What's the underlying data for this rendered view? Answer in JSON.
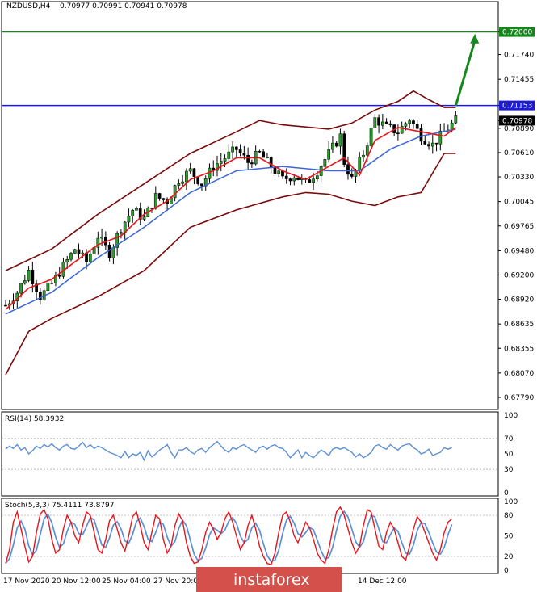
{
  "header": {
    "symbol": "NZDUSD,H4",
    "ohlc": "0.70977 0.70991 0.70941 0.70978"
  },
  "watermark": "instaforex",
  "colors": {
    "candle_body": "#2ca02c",
    "candle_wick": "#000000",
    "ma_fast": "#e8141a",
    "ma_slow": "#3a66d6",
    "bollinger": "#7a0b0b",
    "resistance_line": "#1b1bd8",
    "target_line": "#15861b",
    "arrow": "#15861b",
    "rsi_line": "#5b8fd6",
    "stoch_main": "#e8141a",
    "stoch_signal": "#5b8fd6",
    "watermark_bg": "#d4504a"
  },
  "chart_data": [
    {
      "type": "candlestick",
      "name": "price",
      "ylim": [
        0.6765,
        0.7235
      ],
      "y_ticks": [
        "0.72000",
        "0.71740",
        "0.71455",
        "0.71153",
        "0.70978",
        "0.70890",
        "0.70610",
        "0.70330",
        "0.70045",
        "0.69765",
        "0.69480",
        "0.69200",
        "0.68920",
        "0.68635",
        "0.68355",
        "0.68070",
        "0.67790"
      ],
      "levels": [
        {
          "label": "0.72000",
          "value": 0.72,
          "color": "#15861b"
        },
        {
          "label": "0.71153",
          "value": 0.71153,
          "color": "#1b1bd8"
        },
        {
          "label": "0.70978",
          "value": 0.70978,
          "color": "#000000"
        }
      ],
      "x_labels": [
        "17 Nov 2020",
        "20 Nov 12:00",
        "25 Nov 04:00",
        "27 Nov 20:00",
        "14 Dec 12:00"
      ],
      "close_path": [
        [
          0,
          0.6885
        ],
        [
          3,
          0.69
        ],
        [
          6,
          0.6925
        ],
        [
          9,
          0.6895
        ],
        [
          12,
          0.691
        ],
        [
          15,
          0.693
        ],
        [
          18,
          0.695
        ],
        [
          21,
          0.6935
        ],
        [
          24,
          0.6965
        ],
        [
          27,
          0.6945
        ],
        [
          30,
          0.6975
        ],
        [
          33,
          0.6995
        ],
        [
          36,
          0.6985
        ],
        [
          39,
          0.701
        ],
        [
          42,
          0.7005
        ],
        [
          45,
          0.703
        ],
        [
          48,
          0.704
        ],
        [
          51,
          0.7025
        ],
        [
          54,
          0.7045
        ],
        [
          57,
          0.7055
        ],
        [
          60,
          0.7065
        ],
        [
          63,
          0.705
        ],
        [
          66,
          0.706
        ],
        [
          69,
          0.7045
        ],
        [
          72,
          0.703
        ],
        [
          75,
          0.7035
        ],
        [
          78,
          0.7025
        ],
        [
          81,
          0.704
        ],
        [
          84,
          0.706
        ],
        [
          87,
          0.708
        ],
        [
          88,
          0.705
        ],
        [
          90,
          0.703
        ],
        [
          93,
          0.706
        ],
        [
          96,
          0.71
        ],
        [
          99,
          0.709
        ],
        [
          102,
          0.7085
        ],
        [
          105,
          0.71
        ],
        [
          108,
          0.708
        ],
        [
          111,
          0.707
        ],
        [
          114,
          0.7085
        ],
        [
          117,
          0.7098
        ]
      ],
      "ma_fast": [
        [
          0,
          0.688
        ],
        [
          6,
          0.6905
        ],
        [
          12,
          0.6915
        ],
        [
          18,
          0.6935
        ],
        [
          24,
          0.6955
        ],
        [
          30,
          0.6965
        ],
        [
          36,
          0.699
        ],
        [
          42,
          0.7005
        ],
        [
          48,
          0.703
        ],
        [
          54,
          0.704
        ],
        [
          60,
          0.7055
        ],
        [
          66,
          0.7055
        ],
        [
          72,
          0.704
        ],
        [
          78,
          0.703
        ],
        [
          84,
          0.7045
        ],
        [
          88,
          0.7055
        ],
        [
          92,
          0.7035
        ],
        [
          96,
          0.7075
        ],
        [
          102,
          0.709
        ],
        [
          108,
          0.7085
        ],
        [
          114,
          0.708
        ],
        [
          117,
          0.709
        ]
      ],
      "ma_slow": [
        [
          0,
          0.6875
        ],
        [
          12,
          0.69
        ],
        [
          24,
          0.694
        ],
        [
          36,
          0.6975
        ],
        [
          48,
          0.7015
        ],
        [
          60,
          0.704
        ],
        [
          72,
          0.7045
        ],
        [
          84,
          0.704
        ],
        [
          92,
          0.704
        ],
        [
          100,
          0.7065
        ],
        [
          108,
          0.708
        ],
        [
          117,
          0.7088
        ]
      ],
      "bb_upper": [
        [
          0,
          0.6925
        ],
        [
          12,
          0.695
        ],
        [
          24,
          0.699
        ],
        [
          36,
          0.7025
        ],
        [
          48,
          0.706
        ],
        [
          60,
          0.7085
        ],
        [
          66,
          0.7098
        ],
        [
          72,
          0.7093
        ],
        [
          84,
          0.7088
        ],
        [
          90,
          0.7095
        ],
        [
          96,
          0.711
        ],
        [
          102,
          0.712
        ],
        [
          106,
          0.7132
        ],
        [
          110,
          0.7122
        ],
        [
          114,
          0.7113
        ],
        [
          117,
          0.7113
        ]
      ],
      "bb_lower": [
        [
          0,
          0.6805
        ],
        [
          6,
          0.6855
        ],
        [
          12,
          0.687
        ],
        [
          24,
          0.6895
        ],
        [
          36,
          0.6925
        ],
        [
          48,
          0.6975
        ],
        [
          60,
          0.6995
        ],
        [
          72,
          0.701
        ],
        [
          78,
          0.7015
        ],
        [
          84,
          0.7013
        ],
        [
          90,
          0.7005
        ],
        [
          96,
          0.7
        ],
        [
          102,
          0.701
        ],
        [
          108,
          0.7015
        ],
        [
          114,
          0.706
        ],
        [
          117,
          0.706
        ]
      ],
      "arrow": {
        "from": [
          117,
          0.7115
        ],
        "to": [
          122,
          0.7198
        ]
      }
    },
    {
      "type": "line",
      "name": "RSI",
      "label": "RSI(14) 58.3932",
      "ylim": [
        0,
        100
      ],
      "y_ticks": [
        "100",
        "70",
        "50",
        "30",
        "0"
      ],
      "levels": [
        70,
        30
      ],
      "values": [
        56,
        60,
        57,
        62,
        55,
        58,
        50,
        54,
        60,
        57,
        62,
        59,
        63,
        58,
        55,
        60,
        62,
        57,
        56,
        60,
        65,
        58,
        62,
        57,
        60,
        58,
        55,
        52,
        50,
        48,
        45,
        53,
        45,
        50,
        48,
        52,
        42,
        54,
        46,
        50,
        55,
        58,
        62,
        52,
        45,
        55,
        55,
        58,
        53,
        50,
        55,
        57,
        52,
        58,
        62,
        66,
        60,
        55,
        52,
        58,
        56,
        60,
        62,
        58,
        55,
        52,
        58,
        60,
        56,
        60,
        62,
        58,
        57,
        52,
        45,
        50,
        55,
        45,
        52,
        48,
        45,
        50,
        55,
        52,
        48,
        56,
        58,
        56,
        58,
        55,
        52,
        46,
        50,
        45,
        48,
        52,
        60,
        62,
        58,
        56,
        62,
        58,
        55,
        60,
        62,
        63,
        58,
        55,
        50,
        52,
        56,
        48,
        50,
        52,
        58,
        56,
        58
      ]
    },
    {
      "type": "line",
      "name": "Stochastic",
      "label": "Stoch(5,3,3) 75.4111 73.8797",
      "ylim": [
        0,
        100
      ],
      "y_ticks": [
        "100",
        "80",
        "50",
        "20",
        "0"
      ],
      "levels": [
        80,
        20
      ],
      "main": [
        10,
        30,
        70,
        85,
        60,
        35,
        12,
        20,
        55,
        82,
        88,
        75,
        45,
        25,
        30,
        60,
        80,
        70,
        50,
        40,
        65,
        85,
        80,
        55,
        30,
        25,
        45,
        72,
        80,
        60,
        40,
        28,
        50,
        78,
        85,
        65,
        40,
        30,
        55,
        80,
        75,
        45,
        25,
        35,
        65,
        82,
        72,
        40,
        20,
        10,
        12,
        30,
        55,
        70,
        60,
        45,
        55,
        75,
        85,
        70,
        50,
        30,
        40,
        65,
        80,
        60,
        35,
        20,
        10,
        8,
        25,
        55,
        80,
        85,
        70,
        50,
        40,
        55,
        70,
        62,
        45,
        25,
        15,
        10,
        30,
        60,
        85,
        92,
        80,
        60,
        40,
        25,
        35,
        65,
        88,
        85,
        60,
        35,
        30,
        55,
        70,
        60,
        40,
        20,
        15,
        35,
        60,
        78,
        70,
        55,
        40,
        25,
        15,
        30,
        55,
        70,
        75
      ]
    }
  ]
}
